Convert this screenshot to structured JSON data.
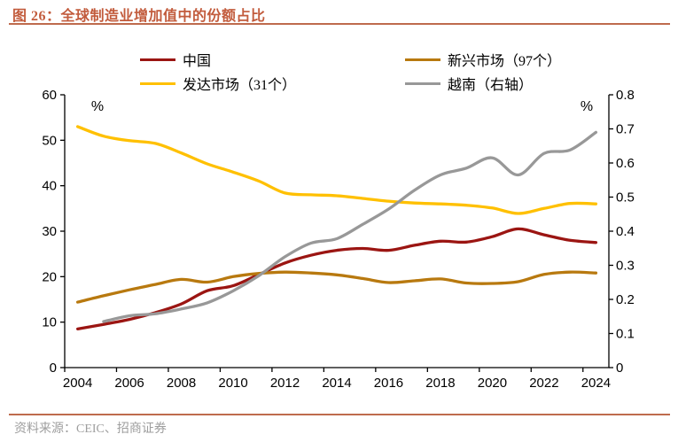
{
  "title": "图 26：全球制造业增加值中的份额占比",
  "source": "资料来源：CEIC、招商证券",
  "colors": {
    "title_accent": "#C25B3C",
    "rule": "#BE6B4D",
    "axis": "#000000",
    "source_text": "#9E9E9E",
    "china": "#9B1512",
    "emerging_markets": "#B8790F",
    "developed_markets": "#FFC000",
    "vietnam": "#989898"
  },
  "legend": {
    "items": [
      {
        "key": "china",
        "label": "中国"
      },
      {
        "key": "emerging",
        "label": "新兴市场（97个）"
      },
      {
        "key": "developed",
        "label": "发达市场（31个）"
      },
      {
        "key": "vietnam",
        "label": "越南（右轴）"
      }
    ]
  },
  "chart_data": {
    "type": "line",
    "title": "全球制造业增加值中的份额占比",
    "x": [
      2004,
      2005,
      2006,
      2007,
      2008,
      2009,
      2010,
      2011,
      2012,
      2013,
      2014,
      2015,
      2016,
      2017,
      2018,
      2019,
      2020,
      2021,
      2022,
      2023,
      2024
    ],
    "x_tick_labels": [
      "2004",
      "2006",
      "2008",
      "2010",
      "2012",
      "2014",
      "2016",
      "2018",
      "2020",
      "2022",
      "2024"
    ],
    "left_axis": {
      "label": "%",
      "min": 0,
      "max": 60,
      "ticks": [
        {
          "v": 0,
          "label": "0"
        },
        {
          "v": 10,
          "label": "10"
        },
        {
          "v": 20,
          "label": "20"
        },
        {
          "v": 30,
          "label": "30"
        },
        {
          "v": 40,
          "label": "40"
        },
        {
          "v": 50,
          "label": "50"
        },
        {
          "v": 60,
          "label": "60"
        }
      ]
    },
    "right_axis": {
      "label": "%",
      "min": 0,
      "max": 0.8,
      "ticks": [
        {
          "v": 0,
          "label": "0"
        },
        {
          "v": 0.1,
          "label": "0.1"
        },
        {
          "v": 0.2,
          "label": "0.2"
        },
        {
          "v": 0.3,
          "label": "0.3"
        },
        {
          "v": 0.4,
          "label": "0.4"
        },
        {
          "v": 0.5,
          "label": "0.5"
        },
        {
          "v": 0.6,
          "label": "0.6"
        },
        {
          "v": 0.7,
          "label": "0.7"
        },
        {
          "v": 0.8,
          "label": "0.8"
        }
      ]
    },
    "grid": false,
    "legend_position": "top",
    "series": [
      {
        "key": "china",
        "name": "中国",
        "axis": "left",
        "color": "#9B1512",
        "values": [
          8.5,
          9.5,
          10.6,
          12.1,
          14.0,
          16.9,
          18.0,
          20.5,
          23.0,
          24.7,
          25.8,
          26.2,
          25.8,
          26.9,
          27.8,
          27.6,
          28.8,
          30.5,
          29.2,
          28.0,
          27.5
        ]
      },
      {
        "key": "emerging",
        "name": "新兴市场（97个）",
        "axis": "left",
        "color": "#B8790F",
        "values": [
          14.4,
          15.8,
          17.1,
          18.3,
          19.4,
          18.8,
          20.0,
          20.7,
          21.0,
          20.8,
          20.4,
          19.6,
          18.7,
          19.1,
          19.5,
          18.6,
          18.5,
          18.9,
          20.5,
          21.0,
          20.8
        ]
      },
      {
        "key": "developed",
        "name": "发达市场（31个）",
        "axis": "left",
        "color": "#FFC000",
        "values": [
          53.0,
          50.9,
          49.9,
          49.3,
          47.2,
          44.8,
          43.0,
          41.0,
          38.4,
          38.0,
          37.8,
          37.2,
          36.6,
          36.2,
          36.0,
          35.7,
          35.1,
          33.9,
          35.0,
          36.1,
          36.0
        ]
      },
      {
        "key": "vietnam",
        "name": "越南（右轴）",
        "axis": "right",
        "color": "#989898",
        "values": [
          null,
          0.135,
          0.152,
          0.158,
          0.172,
          0.19,
          0.225,
          0.27,
          0.325,
          0.365,
          0.378,
          0.42,
          0.465,
          0.52,
          0.565,
          0.585,
          0.615,
          0.565,
          0.628,
          0.638,
          0.69
        ]
      }
    ]
  }
}
